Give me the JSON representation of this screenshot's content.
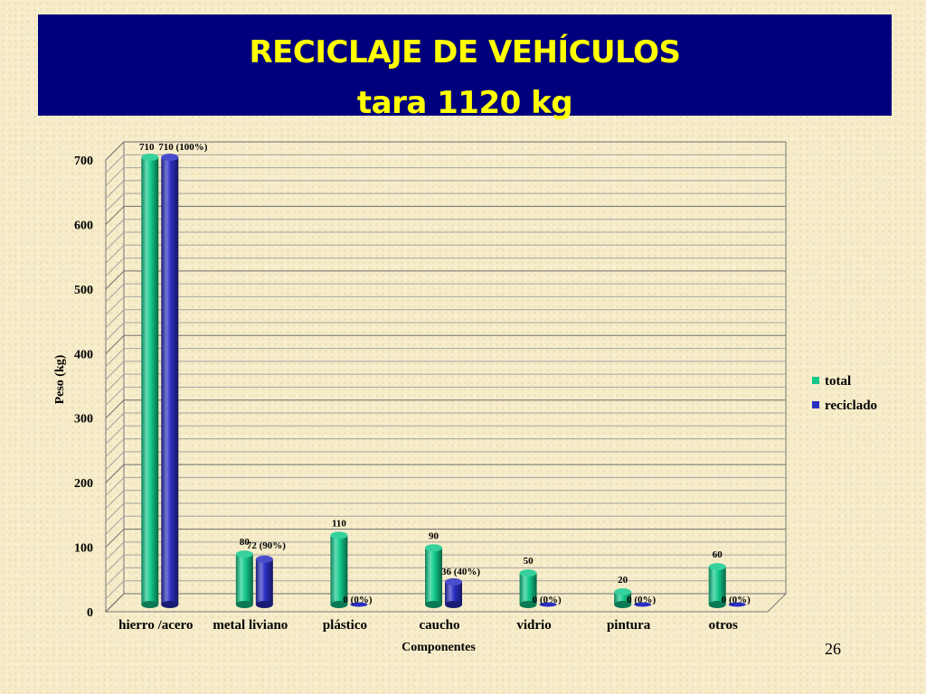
{
  "slide": {
    "title_line1": "RECICLAJE DE VEHÍCULOS",
    "title_line2": "tara 1120 kg",
    "page_number": "26"
  },
  "colors": {
    "banner": "#00007c",
    "title_text": "#ffff00",
    "total": "#12c98b",
    "reciclado": "#2a2ec2"
  },
  "chart_data": {
    "type": "bar",
    "xlabel": "Componentes",
    "ylabel": "Peso (kg)",
    "ylim": [
      0,
      700
    ],
    "yticks": [
      0,
      100,
      200,
      300,
      400,
      500,
      600,
      700
    ],
    "grid": true,
    "legend_position": "right",
    "categories": [
      "hierro /acero",
      "metal liviano",
      "plástico",
      "caucho",
      "vidrio",
      "pintura",
      "otros"
    ],
    "series": [
      {
        "name": "total",
        "values": [
          710,
          80,
          110,
          90,
          50,
          20,
          60
        ],
        "labels": [
          "710",
          "80",
          "110",
          "90",
          "50",
          "20",
          "60"
        ]
      },
      {
        "name": "reciclado",
        "values": [
          710,
          72,
          0,
          36,
          0,
          0,
          0
        ],
        "labels": [
          "710 (100%)",
          "72 (90%)",
          "0 (0%)",
          "36 (40%)",
          "0 (0%)",
          "0 (0%)",
          "0 (0%)"
        ]
      }
    ]
  }
}
